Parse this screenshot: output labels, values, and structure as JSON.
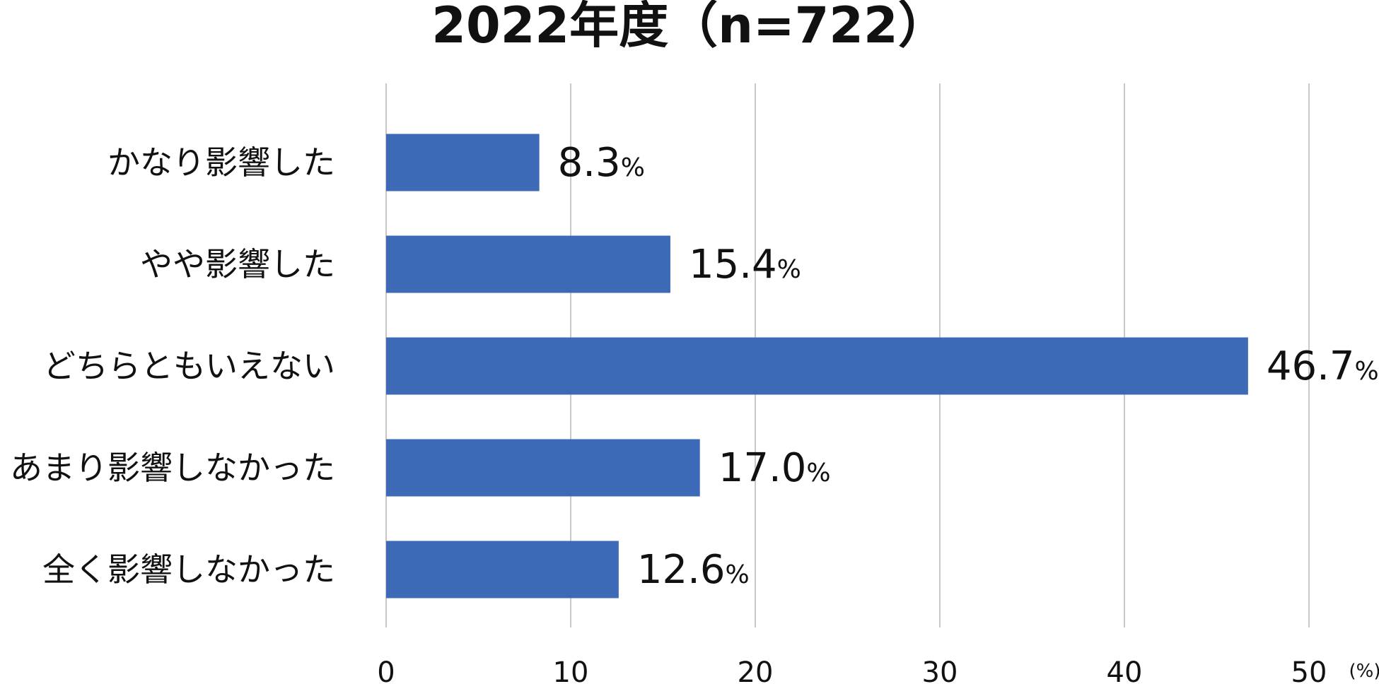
{
  "chart_data": {
    "type": "bar",
    "orientation": "horizontal",
    "title": "2022年度（n=722）",
    "categories": [
      "かなり影響した",
      "やや影響した",
      "どちらともいえない",
      "あまり影響しなかった",
      "全く影響しなかった"
    ],
    "values": [
      8.3,
      15.4,
      46.7,
      17.0,
      12.6
    ],
    "value_labels": [
      "8.3",
      "15.4",
      "46.7",
      "17.0",
      "12.6"
    ],
    "value_suffix": "%",
    "xlim": [
      0,
      50
    ],
    "x_ticks": [
      0,
      10,
      20,
      30,
      40,
      50
    ],
    "x_tick_labels": [
      "0",
      "10",
      "20",
      "30",
      "40",
      "50"
    ],
    "unit_label": "(%)",
    "grid": true,
    "legend": "none",
    "bar_color": "#3d6ab6",
    "grid_color": "#c8c8c8",
    "text_color": "#111111"
  }
}
